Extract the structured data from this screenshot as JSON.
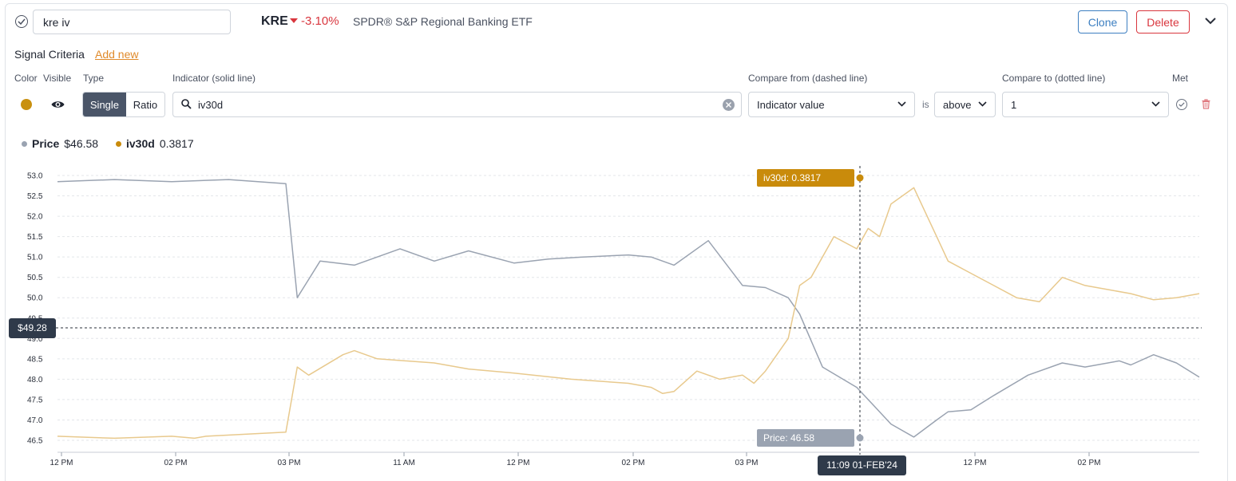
{
  "header": {
    "name_value": "kre iv",
    "ticker": "KRE",
    "change": "-3.10%",
    "etf_name": "SPDR® S&P Regional Banking ETF",
    "clone_label": "Clone",
    "delete_label": "Delete"
  },
  "criteria": {
    "title": "Signal Criteria",
    "add_new": "Add new",
    "columns": {
      "color": "Color",
      "visible": "Visible",
      "type": "Type",
      "indicator": "Indicator (solid line)",
      "compare_from": "Compare from (dashed line)",
      "compare_to": "Compare to (dotted line)",
      "met": "Met"
    },
    "row": {
      "color": "#c9900f",
      "type_options": [
        "Single",
        "Ratio"
      ],
      "type_selected": "Single",
      "indicator": "iv30d",
      "compare_from": "Indicator value",
      "is_label": "is",
      "operator": "above",
      "compare_to": "1"
    }
  },
  "legend": {
    "price_label": "Price",
    "price_value": "$46.58",
    "price_color": "#9aa3b1",
    "iv_label": "iv30d",
    "iv_value": "0.3817",
    "iv_color": "#c98b0b"
  },
  "chart_data": {
    "type": "line",
    "y_ticks": [
      "53.0",
      "52.5",
      "52.0",
      "51.5",
      "51.0",
      "50.5",
      "50.0",
      "49.5",
      "49.0",
      "48.5",
      "48.0",
      "47.5",
      "47.0",
      "46.5"
    ],
    "x_ticks": [
      "12 PM",
      "02 PM",
      "03 PM",
      "11 AM",
      "12 PM",
      "02 PM",
      "03 PM",
      "12 PM",
      "02 PM"
    ],
    "ylim": [
      46.35,
      53.15
    ],
    "grid": true,
    "series": [
      {
        "name": "Price",
        "color": "#9aa3b1",
        "x": [
          0,
          5,
          10,
          15,
          20,
          21,
          23,
          26,
          30,
          33,
          36,
          40,
          43,
          46,
          50,
          52,
          54,
          57,
          60,
          62,
          64,
          65,
          67,
          70,
          72,
          73,
          75,
          77,
          78,
          80,
          82,
          85,
          88,
          90,
          93,
          94,
          96,
          98,
          100
        ],
        "y": [
          52.85,
          52.9,
          52.85,
          52.9,
          52.8,
          50.0,
          50.9,
          50.8,
          51.2,
          50.9,
          51.15,
          50.85,
          50.95,
          51.0,
          51.05,
          51.0,
          50.8,
          51.4,
          50.3,
          50.25,
          50.0,
          49.6,
          48.3,
          47.8,
          47.2,
          46.9,
          46.58,
          47.0,
          47.2,
          47.25,
          47.6,
          48.1,
          48.4,
          48.3,
          48.45,
          48.35,
          48.6,
          48.4,
          48.05
        ]
      },
      {
        "name": "iv30d",
        "color": "#e8c98d",
        "x": [
          0,
          5,
          10,
          12,
          13,
          20,
          21,
          22,
          25,
          26,
          28,
          33,
          36,
          40,
          45,
          50,
          52,
          53,
          54,
          56,
          58,
          60,
          61,
          62,
          64,
          65,
          66,
          68,
          70,
          71,
          72,
          73,
          75,
          77,
          78,
          80,
          82,
          84,
          86,
          88,
          90,
          92,
          94,
          96,
          98,
          100
        ],
        "y": [
          46.6,
          46.55,
          46.6,
          46.55,
          46.6,
          46.7,
          48.3,
          48.1,
          48.6,
          48.7,
          48.5,
          48.4,
          48.25,
          48.15,
          48.0,
          47.9,
          47.8,
          47.65,
          47.7,
          48.2,
          48.0,
          48.1,
          47.9,
          48.2,
          49.0,
          50.3,
          50.5,
          51.5,
          51.2,
          51.7,
          51.5,
          52.3,
          52.7,
          51.5,
          50.9,
          50.6,
          50.3,
          50.0,
          49.9,
          50.5,
          50.3,
          50.2,
          50.1,
          49.95,
          50.0,
          50.1
        ]
      }
    ],
    "crosshair": {
      "x_label": "11:09 01-FEB'24",
      "y_label": "$49.28",
      "iv_tooltip": "iv30d: 0.3817",
      "price_tooltip": "Price: 46.58"
    }
  }
}
